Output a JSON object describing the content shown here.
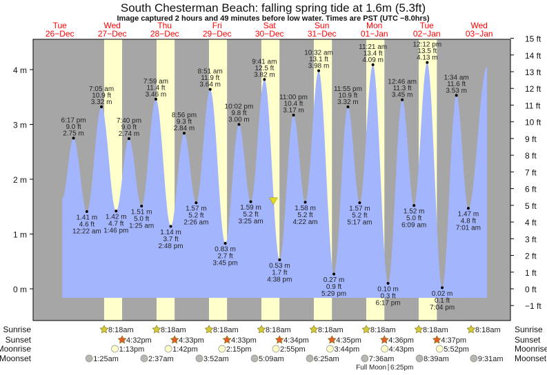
{
  "chart_data": {
    "type": "area",
    "title": "South Chesterman Beach: falling  spring tide at 1.6m (5.3ft)",
    "subtitle": "Image captured 2 hours and 49 minutes before low water. Times are PST (UTC −8.0hrs)",
    "days": [
      {
        "dow": "Tue",
        "date": "26−Dec"
      },
      {
        "dow": "Wed",
        "date": "27−Dec"
      },
      {
        "dow": "Thu",
        "date": "28−Dec"
      },
      {
        "dow": "Fri",
        "date": "29−Dec"
      },
      {
        "dow": "Sat",
        "date": "30−Dec"
      },
      {
        "dow": "Sun",
        "date": "31−Dec"
      },
      {
        "dow": "Mon",
        "date": "01−Jan"
      },
      {
        "dow": "Tue",
        "date": "02−Jan"
      },
      {
        "dow": "Wed",
        "date": "03−Jan"
      }
    ],
    "x_unit": "hours since Tue 26-Dec 00:00 PST",
    "y_left": {
      "unit": "m",
      "ticks": [
        0,
        1,
        2,
        3,
        4
      ],
      "labels": [
        "0 m",
        "1 m",
        "2 m",
        "3 m",
        "4 m"
      ]
    },
    "y_right": {
      "unit": "ft",
      "ticks": [
        -1,
        0,
        1,
        2,
        3,
        4,
        5,
        6,
        7,
        8,
        9,
        10,
        11,
        12,
        13,
        14,
        15
      ]
    },
    "curve_start": {
      "hour": 13.1,
      "m": 1.65
    },
    "curve_end": {
      "hour": 207.6,
      "m": 4.05
    },
    "extremes": [
      {
        "type": "high",
        "hour": 18.28,
        "time": "6:17 pm",
        "ft": "9.0 ft",
        "m": 2.75,
        "m_label": "2.75 m"
      },
      {
        "type": "low",
        "hour": 24.37,
        "time": "12:22 am",
        "ft": "4.6 ft",
        "m": 1.41,
        "m_label": "1.41 m"
      },
      {
        "type": "high",
        "hour": 31.08,
        "time": "7:05 am",
        "ft": "10.9 ft",
        "m": 3.32,
        "m_label": "3.32 m"
      },
      {
        "type": "low",
        "hour": 37.77,
        "time": "1:46 pm",
        "ft": "4.7 ft",
        "m": 1.42,
        "m_label": "1.42 m"
      },
      {
        "type": "high",
        "hour": 43.67,
        "time": "7:40 pm",
        "ft": "9.0 ft",
        "m": 2.74,
        "m_label": "2.74 m"
      },
      {
        "type": "low",
        "hour": 49.42,
        "time": "1:25 am",
        "ft": "5.0 ft",
        "m": 1.51,
        "m_label": "1.51 m"
      },
      {
        "type": "high",
        "hour": 55.98,
        "time": "7:59 am",
        "ft": "11.4 ft",
        "m": 3.46,
        "m_label": "3.46 m"
      },
      {
        "type": "low",
        "hour": 62.8,
        "time": "2:48 pm",
        "ft": "3.7 ft",
        "m": 1.14,
        "m_label": "1.14 m"
      },
      {
        "type": "high",
        "hour": 68.93,
        "time": "8:56 pm",
        "ft": "9.3 ft",
        "m": 2.84,
        "m_label": "2.84 m"
      },
      {
        "type": "low",
        "hour": 74.43,
        "time": "2:26 am",
        "ft": "5.2 ft",
        "m": 1.57,
        "m_label": "1.57 m"
      },
      {
        "type": "high",
        "hour": 80.85,
        "time": "8:51 am",
        "ft": "11.9 ft",
        "m": 3.64,
        "m_label": "3.64 m"
      },
      {
        "type": "low",
        "hour": 87.75,
        "time": "3:45 pm",
        "ft": "2.7 ft",
        "m": 0.83,
        "m_label": "0.83 m"
      },
      {
        "type": "high",
        "hour": 94.03,
        "time": "10:02 pm",
        "ft": "9.8 ft",
        "m": 3.0,
        "m_label": "3.00 m"
      },
      {
        "type": "low",
        "hour": 99.42,
        "time": "3:25 am",
        "ft": "5.2 ft",
        "m": 1.59,
        "m_label": "1.59 m"
      },
      {
        "type": "high",
        "hour": 105.68,
        "time": "9:41 am",
        "ft": "12.5 ft",
        "m": 3.82,
        "m_label": "3.82 m"
      },
      {
        "type": "low",
        "hour": 112.63,
        "time": "4:38 pm",
        "ft": "1.7 ft",
        "m": 0.53,
        "m_label": "0.53 m"
      },
      {
        "type": "high",
        "hour": 119.0,
        "time": "11:00 pm",
        "ft": "10.4 ft",
        "m": 3.17,
        "m_label": "3.17 m"
      },
      {
        "type": "low",
        "hour": 124.37,
        "time": "4:22 am",
        "ft": "5.2 ft",
        "m": 1.58,
        "m_label": "1.58 m"
      },
      {
        "type": "high",
        "hour": 130.53,
        "time": "10:32 am",
        "ft": "13.1 ft",
        "m": 3.98,
        "m_label": "3.98 m"
      },
      {
        "type": "low",
        "hour": 137.48,
        "time": "5:29 pm",
        "ft": "0.9 ft",
        "m": 0.27,
        "m_label": "0.27 m"
      },
      {
        "type": "high",
        "hour": 143.92,
        "time": "11:55 pm",
        "ft": "10.9 ft",
        "m": 3.32,
        "m_label": "3.32 m"
      },
      {
        "type": "low",
        "hour": 149.28,
        "time": "5:17 am",
        "ft": "5.2 ft",
        "m": 1.57,
        "m_label": "1.57 m"
      },
      {
        "type": "high",
        "hour": 155.35,
        "time": "11:21 am",
        "ft": "13.4 ft",
        "m": 4.09,
        "m_label": "4.09 m"
      },
      {
        "type": "low",
        "hour": 162.28,
        "time": "6:17 pm",
        "ft": "0.3 ft",
        "m": 0.1,
        "m_label": "0.10 m"
      },
      {
        "type": "high",
        "hour": 168.77,
        "time": "12:46 am",
        "ft": "11.3 ft",
        "m": 3.45,
        "m_label": "3.45 m"
      },
      {
        "type": "low",
        "hour": 174.15,
        "time": "6:09 am",
        "ft": "5.0 ft",
        "m": 1.52,
        "m_label": "1.52 m"
      },
      {
        "type": "high",
        "hour": 180.2,
        "time": "12:12 pm",
        "ft": "13.5 ft",
        "m": 4.13,
        "m_label": "4.13 m"
      },
      {
        "type": "low",
        "hour": 187.07,
        "time": "7:04 pm",
        "ft": "0.1 ft",
        "m": 0.02,
        "m_label": "0.02 m"
      },
      {
        "type": "high",
        "hour": 193.57,
        "time": "1:34 am",
        "ft": "11.6 ft",
        "m": 3.53,
        "m_label": "3.53 m"
      },
      {
        "type": "low",
        "hour": 199.02,
        "time": "7:01 am",
        "ft": "4.8 ft",
        "m": 1.47,
        "m_label": "1.47 m"
      }
    ],
    "current": {
      "hour": 109.82,
      "m": 1.6
    },
    "daylight": [
      {
        "rise": 32.3,
        "set": 40.53
      },
      {
        "rise": 56.3,
        "set": 64.55
      },
      {
        "rise": 80.3,
        "set": 88.55
      },
      {
        "rise": 104.3,
        "set": 112.57
      },
      {
        "rise": 128.3,
        "set": 136.58
      },
      {
        "rise": 152.3,
        "set": 160.6
      },
      {
        "rise": 176.3,
        "set": 184.62
      }
    ],
    "rows": {
      "sunrise": {
        "label": "Sunrise",
        "items": [
          {
            "hour": 32.3,
            "time": "8:18am"
          },
          {
            "hour": 56.3,
            "time": "8:18am"
          },
          {
            "hour": 80.3,
            "time": "8:18am"
          },
          {
            "hour": 104.3,
            "time": "8:18am"
          },
          {
            "hour": 128.3,
            "time": "8:18am"
          },
          {
            "hour": 152.3,
            "time": "8:18am"
          },
          {
            "hour": 176.3,
            "time": "8:18am"
          },
          {
            "hour": 200.3,
            "time": "8:18am"
          }
        ]
      },
      "sunset": {
        "label": "Sunset",
        "items": [
          {
            "hour": 40.53,
            "time": "4:32pm"
          },
          {
            "hour": 64.55,
            "time": "4:33pm"
          },
          {
            "hour": 88.55,
            "time": "4:33pm"
          },
          {
            "hour": 112.57,
            "time": "4:34pm"
          },
          {
            "hour": 136.58,
            "time": "4:35pm"
          },
          {
            "hour": 160.6,
            "time": "4:36pm"
          },
          {
            "hour": 184.62,
            "time": "4:37pm"
          }
        ]
      },
      "moonrise": {
        "label": "Moonrise",
        "items": [
          {
            "hour": 37.22,
            "time": "1:13pm"
          },
          {
            "hour": 61.7,
            "time": "1:42pm"
          },
          {
            "hour": 86.25,
            "time": "2:15pm"
          },
          {
            "hour": 110.92,
            "time": "2:55pm"
          },
          {
            "hour": 135.73,
            "time": "3:44pm"
          },
          {
            "hour": 160.72,
            "time": "4:43pm"
          },
          {
            "hour": 185.87,
            "time": "5:52pm"
          }
        ]
      },
      "moonset": {
        "label": "Moonset",
        "items": [
          {
            "hour": 25.42,
            "time": "1:25am"
          },
          {
            "hour": 50.62,
            "time": "2:37am"
          },
          {
            "hour": 75.87,
            "time": "3:52am"
          },
          {
            "hour": 101.15,
            "time": "5:09am"
          },
          {
            "hour": 126.42,
            "time": "6:25am"
          },
          {
            "hour": 151.6,
            "time": "7:36am"
          },
          {
            "hour": 176.65,
            "time": "8:39am"
          },
          {
            "hour": 201.52,
            "time": "9:31am"
          }
        ]
      }
    },
    "full_moon": {
      "label": "Full Moon",
      "hour": 162.42,
      "time": "6:25pm"
    },
    "colors": {
      "water": "#a3b5fd",
      "night": "#a6a6a6",
      "day": "#ffffcc",
      "days_text": "#ff0000",
      "sunrise": "#d4cc3a",
      "sunset": "#e0602a",
      "moonrise": "#ffffcc",
      "moonset": "#b8b8b0"
    }
  }
}
